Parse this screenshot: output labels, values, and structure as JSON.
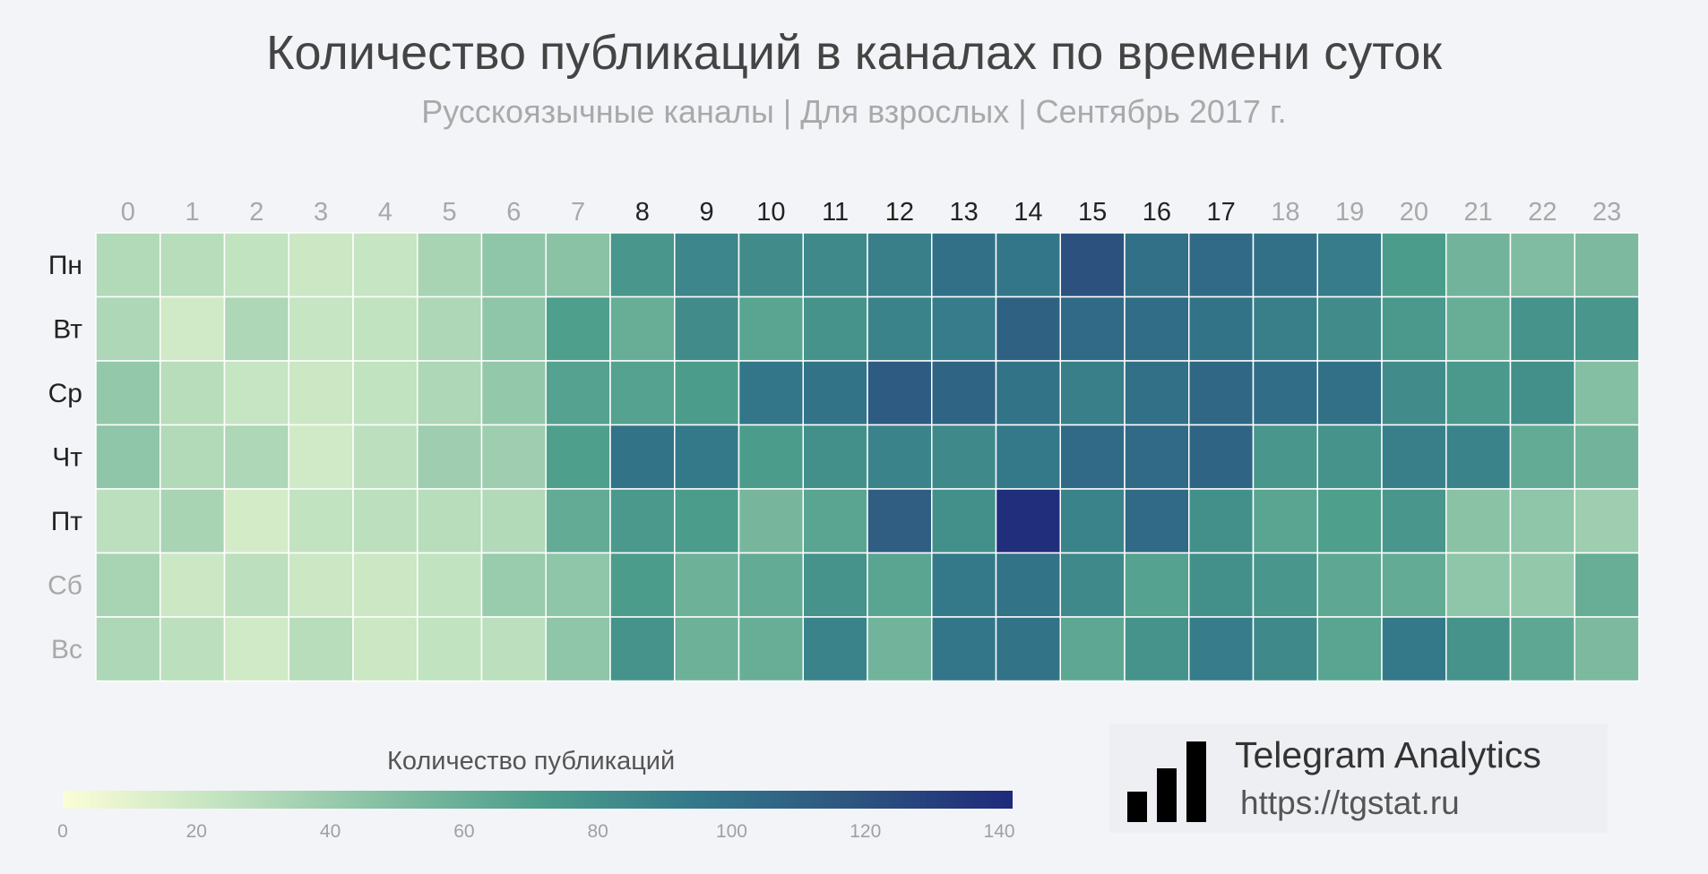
{
  "chart_data": {
    "type": "heatmap",
    "title": "Количество публикаций в каналах по времени суток",
    "subtitle": "Русскоязычные каналы | Для взрослых | Сентябрь 2017 г.",
    "x_categories": [
      "0",
      "1",
      "2",
      "3",
      "4",
      "5",
      "6",
      "7",
      "8",
      "9",
      "10",
      "11",
      "12",
      "13",
      "14",
      "15",
      "16",
      "17",
      "18",
      "19",
      "20",
      "21",
      "22",
      "23"
    ],
    "y_categories": [
      "Пн",
      "Вт",
      "Ср",
      "Чт",
      "Пт",
      "Сб",
      "Вс"
    ],
    "x_highlighted": [
      "8",
      "9",
      "10",
      "11",
      "12",
      "13",
      "14",
      "15",
      "16",
      "17"
    ],
    "y_highlighted": [
      "Пн",
      "Вт",
      "Ср",
      "Чт",
      "Пт"
    ],
    "values": [
      [
        30,
        28,
        24,
        20,
        22,
        34,
        44,
        46,
        76,
        86,
        82,
        84,
        90,
        100,
        96,
        120,
        100,
        104,
        100,
        92,
        72,
        56,
        50,
        52
      ],
      [
        32,
        18,
        32,
        22,
        24,
        32,
        44,
        70,
        60,
        82,
        66,
        78,
        88,
        92,
        110,
        104,
        102,
        98,
        90,
        82,
        74,
        60,
        78,
        76
      ],
      [
        42,
        28,
        22,
        20,
        24,
        32,
        42,
        68,
        68,
        72,
        96,
        98,
        114,
        108,
        98,
        90,
        100,
        106,
        102,
        100,
        82,
        74,
        80,
        48
      ],
      [
        44,
        30,
        32,
        18,
        26,
        38,
        38,
        70,
        98,
        94,
        72,
        80,
        88,
        84,
        94,
        104,
        104,
        108,
        76,
        78,
        90,
        88,
        62,
        56
      ],
      [
        26,
        34,
        16,
        24,
        26,
        28,
        30,
        62,
        74,
        72,
        54,
        66,
        112,
        80,
        140,
        88,
        104,
        80,
        66,
        70,
        76,
        46,
        44,
        38
      ],
      [
        34,
        20,
        26,
        20,
        20,
        24,
        40,
        44,
        72,
        58,
        62,
        78,
        66,
        94,
        98,
        84,
        68,
        80,
        76,
        64,
        62,
        44,
        42,
        60
      ],
      [
        32,
        26,
        18,
        28,
        20,
        24,
        26,
        44,
        78,
        58,
        60,
        88,
        56,
        96,
        98,
        64,
        78,
        92,
        84,
        66,
        94,
        78,
        64,
        52
      ]
    ],
    "colorbar": {
      "title": "Количество публикаций",
      "min": 0,
      "max": 142,
      "ticks": [
        0,
        20,
        40,
        60,
        80,
        100,
        120,
        140
      ],
      "colors": [
        "#fbfdd7",
        "#c2e3c0",
        "#87c0a4",
        "#4d9e8c",
        "#33788a",
        "#2d547f",
        "#1f2a7b"
      ]
    },
    "grid": false,
    "legend_position": "bottom-left"
  },
  "brand": {
    "name": "Telegram Analytics",
    "url": "https://tgstat.ru"
  },
  "colors": {
    "background": "#f3f4f7",
    "tick_highlight": "#222222",
    "tick_muted": "#a8a8a8"
  }
}
